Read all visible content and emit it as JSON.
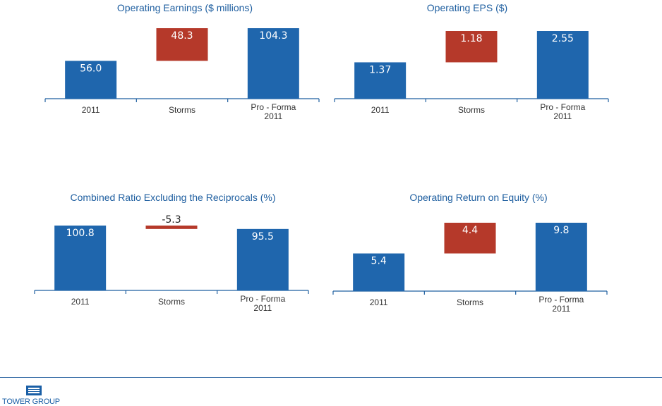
{
  "colors": {
    "increase": "#1f66ad",
    "storm": "#b5392a",
    "title": "#1f5fa0",
    "axis": "#1f5fa0"
  },
  "chart_data": [
    {
      "type": "bar",
      "subtype": "waterfall",
      "title": "Operating Earnings ($ millions)",
      "categories": [
        "2011",
        "Storms",
        "Pro - Forma\n2011"
      ],
      "values": [
        56.0,
        48.3,
        104.3
      ],
      "value_labels": [
        "56.0",
        "48.3",
        "104.3"
      ],
      "bar_kinds": [
        "total",
        "delta",
        "total"
      ],
      "ylim": [
        0,
        104.3
      ]
    },
    {
      "type": "bar",
      "subtype": "waterfall",
      "title": "Operating EPS ($)",
      "categories": [
        "2011",
        "Storms",
        "Pro - Forma\n2011"
      ],
      "values": [
        1.37,
        1.18,
        2.55
      ],
      "value_labels": [
        "1.37",
        "1.18",
        "2.55"
      ],
      "bar_kinds": [
        "total",
        "delta",
        "total"
      ],
      "ylim": [
        0,
        2.55
      ]
    },
    {
      "type": "bar",
      "subtype": "waterfall",
      "title": "Combined Ratio Excluding the Reciprocals (%)",
      "categories": [
        "2011",
        "Storms",
        "Pro - Forma\n2011"
      ],
      "values": [
        100.8,
        -5.3,
        95.5
      ],
      "value_labels": [
        "100.8",
        "-5.3",
        "95.5"
      ],
      "bar_kinds": [
        "total",
        "delta",
        "total"
      ],
      "ylim": [
        0,
        100.8
      ]
    },
    {
      "type": "bar",
      "subtype": "waterfall",
      "title": "Operating Return on Equity (%)",
      "categories": [
        "2011",
        "Storms",
        "Pro - Forma\n2011"
      ],
      "values": [
        5.4,
        4.4,
        9.8
      ],
      "value_labels": [
        "5.4",
        "4.4",
        "9.8"
      ],
      "bar_kinds": [
        "total",
        "delta",
        "total"
      ],
      "ylim": [
        0,
        9.8
      ]
    }
  ],
  "footer": {
    "logo_text": "TOWER GROUP"
  }
}
